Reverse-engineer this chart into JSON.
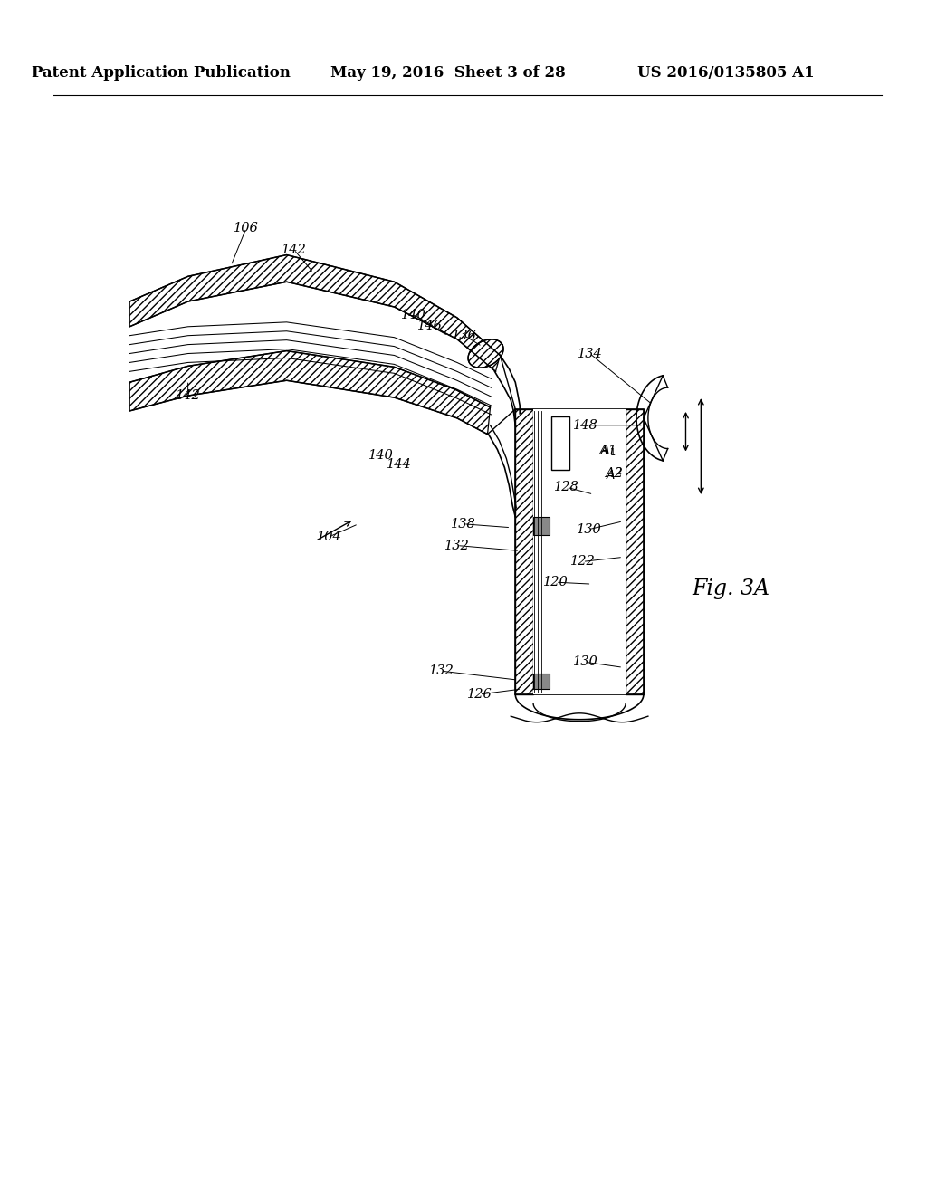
{
  "bg_color": "#ffffff",
  "header_left": "Patent Application Publication",
  "header_center": "May 19, 2016  Sheet 3 of 28",
  "header_right": "US 2016/0135805 A1",
  "fig_label": "Fig. 3A",
  "text_color": "#000000",
  "line_color": "#000000",
  "labels": [
    [
      "106",
      265,
      248
    ],
    [
      "142",
      318,
      272
    ],
    [
      "140",
      452,
      345
    ],
    [
      "146",
      470,
      357
    ],
    [
      "136",
      508,
      368
    ],
    [
      "134",
      648,
      388
    ],
    [
      "148",
      643,
      468
    ],
    [
      "A1",
      668,
      496
    ],
    [
      "A2",
      675,
      522
    ],
    [
      "128",
      622,
      537
    ],
    [
      "104",
      358,
      592
    ],
    [
      "138",
      507,
      578
    ],
    [
      "130",
      647,
      584
    ],
    [
      "132",
      500,
      602
    ],
    [
      "140",
      415,
      502
    ],
    [
      "144",
      435,
      512
    ],
    [
      "122",
      640,
      620
    ],
    [
      "120",
      610,
      643
    ],
    [
      "130",
      643,
      732
    ],
    [
      "132",
      483,
      742
    ],
    [
      "126",
      525,
      768
    ],
    [
      "142",
      200,
      435
    ]
  ]
}
